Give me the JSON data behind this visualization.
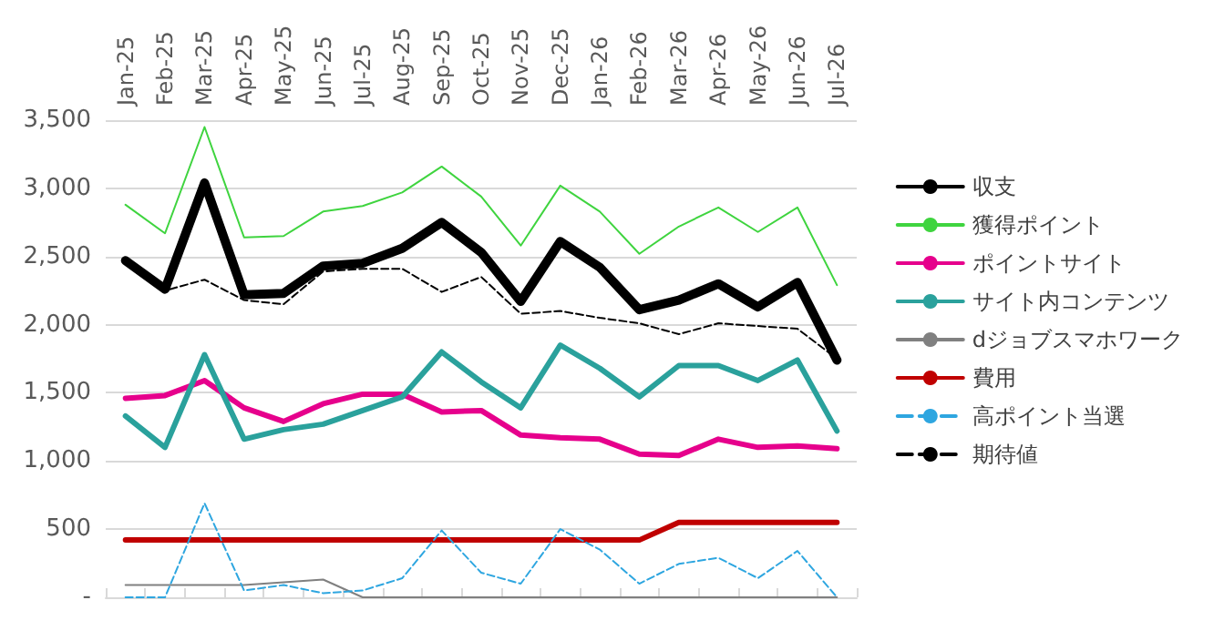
{
  "chart_data": {
    "type": "line",
    "categories": [
      "Jan-25",
      "Feb-25",
      "Mar-25",
      "Apr-25",
      "May-25",
      "Jun-25",
      "Jul-25",
      "Aug-25",
      "Sep-25",
      "Oct-25",
      "Nov-25",
      "Dec-25",
      "Jan-26",
      "Feb-26",
      "Mar-26",
      "Apr-26",
      "May-26",
      "Jun-26",
      "Jul-26"
    ],
    "ylim": [
      0,
      3500
    ],
    "yticks": [
      {
        "value": 0,
        "label": "-"
      },
      {
        "value": 500,
        "label": "500"
      },
      {
        "value": 1000,
        "label": "1,000"
      },
      {
        "value": 1500,
        "label": "1,500"
      },
      {
        "value": 2000,
        "label": "2,000"
      },
      {
        "value": 2500,
        "label": "2,500"
      },
      {
        "value": 3000,
        "label": "3,000"
      },
      {
        "value": 3500,
        "label": "3,500"
      }
    ],
    "grid": "y",
    "legend": "right",
    "marker": "none",
    "series": [
      {
        "name": "収支",
        "color": "#000000",
        "values": [
          2470,
          2260,
          3040,
          2220,
          2230,
          2430,
          2450,
          2560,
          2750,
          2530,
          2170,
          2610,
          2420,
          2110,
          2180,
          2300,
          2130,
          2310,
          1740
        ]
      },
      {
        "name": "獲得ポイント",
        "color": "#3fd43f",
        "values": [
          2880,
          2670,
          3450,
          2640,
          2650,
          2830,
          2870,
          2970,
          3160,
          2940,
          2580,
          3020,
          2830,
          2520,
          2720,
          2860,
          2680,
          2860,
          2290
        ]
      },
      {
        "name": "ポイントサイト",
        "color": "#e6008c",
        "values": [
          1460,
          1480,
          1590,
          1390,
          1290,
          1420,
          1490,
          1490,
          1360,
          1370,
          1190,
          1170,
          1160,
          1050,
          1040,
          1160,
          1100,
          1110,
          1090
        ]
      },
      {
        "name": "サイト内コンテンツ",
        "color": "#2aa19c",
        "values": [
          1330,
          1100,
          1780,
          1160,
          1230,
          1270,
          1370,
          1470,
          1800,
          1580,
          1390,
          1850,
          1680,
          1470,
          1700,
          1700,
          1590,
          1740,
          1220
        ]
      },
      {
        "name": "dジョブスマホワーク",
        "color": "#808080",
        "values": [
          90,
          90,
          90,
          90,
          110,
          130,
          0,
          0,
          0,
          0,
          0,
          0,
          0,
          0,
          0,
          0,
          0,
          0,
          0
        ]
      },
      {
        "name": "費用",
        "color": "#c00000",
        "values": [
          420,
          420,
          420,
          420,
          420,
          420,
          420,
          420,
          420,
          420,
          420,
          420,
          420,
          420,
          550,
          550,
          550,
          550,
          550
        ]
      },
      {
        "name": "高ポイント当選",
        "color": "#2ea6e0",
        "line_style": "dashed",
        "values": [
          0,
          0,
          690,
          50,
          90,
          30,
          50,
          140,
          490,
          180,
          100,
          500,
          350,
          100,
          245,
          290,
          140,
          340,
          0
        ]
      },
      {
        "name": "期待値",
        "color": "#000000",
        "line_style": "dashed",
        "values": [
          2470,
          2250,
          2330,
          2180,
          2150,
          2390,
          2410,
          2410,
          2240,
          2350,
          2080,
          2100,
          2050,
          2010,
          1930,
          2010,
          1990,
          1970,
          1750
        ]
      }
    ]
  }
}
